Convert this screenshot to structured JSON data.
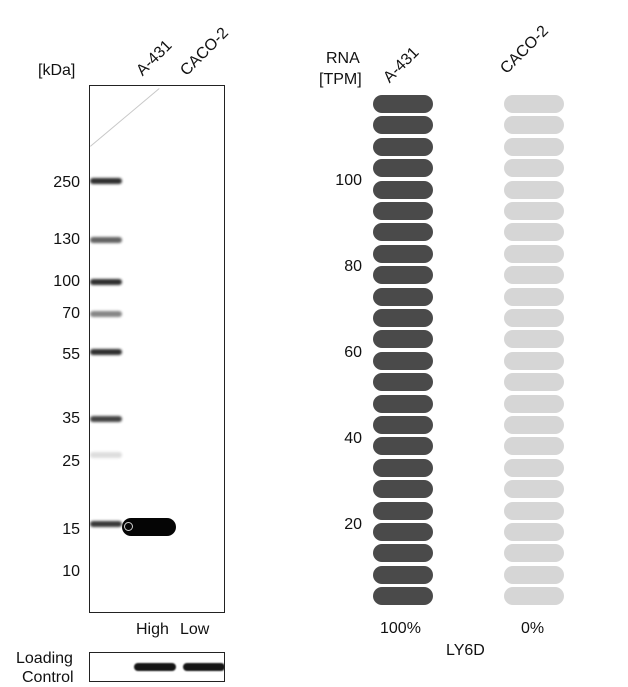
{
  "blot": {
    "unit_label": "[kDa]",
    "lanes": [
      "A-431",
      "CACO-2"
    ],
    "markers": [
      "250",
      "130",
      "100",
      "70",
      "55",
      "35",
      "25",
      "15",
      "10"
    ],
    "expression_levels": [
      "High",
      "Low"
    ],
    "loading_control_label_line1": "Loading",
    "loading_control_label_line2": "Control"
  },
  "rna": {
    "axis_label_line1": "RNA",
    "axis_label_line2": "[TPM]",
    "samples": [
      "A-431",
      "CACO-2"
    ],
    "ticks": [
      "100",
      "80",
      "60",
      "40",
      "20"
    ],
    "percentages": [
      "100%",
      "0%"
    ],
    "gene": "LY6D",
    "colors": {
      "high": "#4a4a4a",
      "low": "#d6d6d6"
    }
  }
}
